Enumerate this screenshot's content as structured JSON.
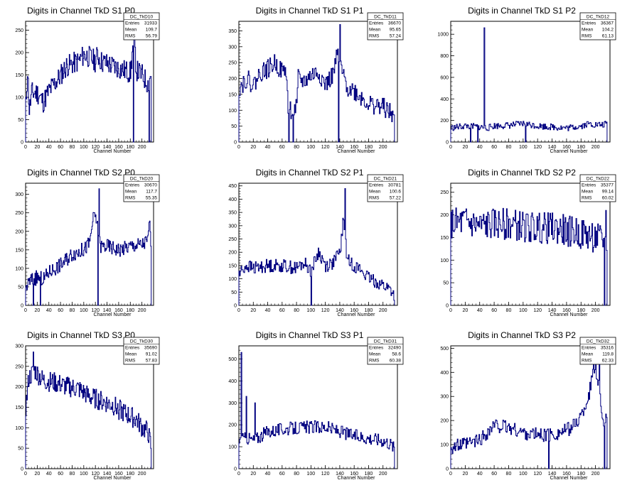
{
  "page": {
    "background": "#ffffff",
    "line_color": "#000080"
  },
  "chart_data": [
    {
      "type": "line",
      "title": "Digits in Channel TkD S1 P0",
      "xlabel": "Channel Number",
      "ylabel": "",
      "xlim": [
        0,
        220
      ],
      "ylim": [
        0,
        270
      ],
      "x_ticks": [
        0,
        20,
        40,
        60,
        80,
        100,
        120,
        140,
        160,
        180,
        200
      ],
      "y_ticks": [
        0,
        50,
        100,
        150,
        200,
        250
      ],
      "stats": {
        "name": "DC_TkD10",
        "rows": [
          [
            "Entries",
            "31933"
          ],
          [
            "Mean",
            "109.7"
          ],
          [
            "RMS",
            "56.79"
          ]
        ]
      },
      "spikes": [
        [
          185,
          0
        ],
        [
          212,
          0
        ]
      ],
      "anchors": [
        [
          0,
          80
        ],
        [
          3,
          160
        ],
        [
          6,
          70
        ],
        [
          10,
          110
        ],
        [
          20,
          110
        ],
        [
          30,
          90
        ],
        [
          40,
          115
        ],
        [
          55,
          140
        ],
        [
          70,
          170
        ],
        [
          80,
          175
        ],
        [
          90,
          180
        ],
        [
          100,
          195
        ],
        [
          110,
          190
        ],
        [
          120,
          180
        ],
        [
          123,
          195
        ],
        [
          130,
          180
        ],
        [
          140,
          175
        ],
        [
          150,
          170
        ],
        [
          160,
          165
        ],
        [
          170,
          160
        ],
        [
          180,
          155
        ],
        [
          186,
          240
        ],
        [
          190,
          160
        ],
        [
          200,
          150
        ],
        [
          210,
          130
        ],
        [
          215,
          150
        ]
      ],
      "noise": 25,
      "seed": 11
    },
    {
      "type": "line",
      "title": "Digits in Channel TkD S1 P1",
      "xlabel": "Channel Number",
      "ylabel": "",
      "xlim": [
        0,
        220
      ],
      "ylim": [
        0,
        380
      ],
      "x_ticks": [
        0,
        20,
        40,
        60,
        80,
        100,
        120,
        140,
        160,
        180,
        200
      ],
      "y_ticks": [
        0,
        50,
        100,
        150,
        200,
        250,
        300,
        350
      ],
      "stats": {
        "name": "DC_TkD11",
        "rows": [
          [
            "Entries",
            "36670"
          ],
          [
            "Mean",
            "95.65"
          ],
          [
            "RMS",
            "57.24"
          ]
        ]
      },
      "spikes": [
        [
          69,
          0
        ],
        [
          75,
          0
        ],
        [
          138,
          0
        ],
        [
          140,
          370
        ]
      ],
      "anchors": [
        [
          0,
          170
        ],
        [
          10,
          200
        ],
        [
          20,
          180
        ],
        [
          30,
          220
        ],
        [
          40,
          230
        ],
        [
          50,
          250
        ],
        [
          60,
          220
        ],
        [
          65,
          230
        ],
        [
          68,
          100
        ],
        [
          80,
          105
        ],
        [
          82,
          200
        ],
        [
          90,
          190
        ],
        [
          100,
          210
        ],
        [
          110,
          220
        ],
        [
          120,
          180
        ],
        [
          130,
          210
        ],
        [
          137,
          280
        ],
        [
          145,
          200
        ],
        [
          150,
          175
        ],
        [
          160,
          160
        ],
        [
          170,
          140
        ],
        [
          180,
          120
        ],
        [
          190,
          115
        ],
        [
          200,
          110
        ],
        [
          210,
          90
        ],
        [
          215,
          80
        ]
      ],
      "noise": 30,
      "seed": 22
    },
    {
      "type": "line",
      "title": "Digits in Channel TkD S1 P2",
      "xlabel": "Channel Number",
      "ylabel": "",
      "xlim": [
        0,
        220
      ],
      "ylim": [
        0,
        1120
      ],
      "x_ticks": [
        0,
        20,
        40,
        60,
        80,
        100,
        120,
        140,
        160,
        180,
        200
      ],
      "y_ticks": [
        0,
        200,
        400,
        600,
        800,
        1000
      ],
      "stats": {
        "name": "DC_TkD12",
        "rows": [
          [
            "Entries",
            "36367"
          ],
          [
            "Mean",
            "104.2"
          ],
          [
            "RMS",
            "61.13"
          ]
        ]
      },
      "spikes": [
        [
          27,
          0
        ],
        [
          37,
          0
        ],
        [
          46,
          1060
        ],
        [
          103,
          0
        ]
      ],
      "anchors": [
        [
          0,
          130
        ],
        [
          20,
          150
        ],
        [
          40,
          140
        ],
        [
          50,
          130
        ],
        [
          60,
          150
        ],
        [
          80,
          155
        ],
        [
          100,
          170
        ],
        [
          120,
          150
        ],
        [
          140,
          140
        ],
        [
          160,
          130
        ],
        [
          170,
          140
        ],
        [
          180,
          150
        ],
        [
          190,
          170
        ],
        [
          200,
          160
        ],
        [
          210,
          160
        ],
        [
          215,
          170
        ]
      ],
      "noise": 30,
      "seed": 33
    },
    {
      "type": "line",
      "title": "Digits in Channel TkD S2 P0",
      "xlabel": "Channel Number",
      "ylabel": "",
      "xlim": [
        0,
        220
      ],
      "ylim": [
        0,
        330
      ],
      "x_ticks": [
        0,
        20,
        40,
        60,
        80,
        100,
        120,
        140,
        160,
        180,
        200
      ],
      "y_ticks": [
        0,
        50,
        100,
        150,
        200,
        250,
        300
      ],
      "stats": {
        "name": "DC_TkD20",
        "rows": [
          [
            "Entries",
            "30670"
          ],
          [
            "Mean",
            "117.7"
          ],
          [
            "RMS",
            "55.35"
          ]
        ]
      },
      "spikes": [
        [
          13,
          0
        ],
        [
          25,
          0
        ],
        [
          124,
          0
        ],
        [
          126,
          315
        ]
      ],
      "anchors": [
        [
          0,
          50
        ],
        [
          10,
          70
        ],
        [
          20,
          75
        ],
        [
          30,
          70
        ],
        [
          40,
          90
        ],
        [
          60,
          110
        ],
        [
          80,
          140
        ],
        [
          100,
          150
        ],
        [
          110,
          170
        ],
        [
          115,
          230
        ],
        [
          120,
          240
        ],
        [
          128,
          160
        ],
        [
          140,
          160
        ],
        [
          160,
          150
        ],
        [
          180,
          160
        ],
        [
          200,
          165
        ],
        [
          210,
          175
        ],
        [
          213,
          240
        ],
        [
          216,
          95
        ]
      ],
      "noise": 20,
      "seed": 44
    },
    {
      "type": "line",
      "title": "Digits in Channel TkD S2 P1",
      "xlabel": "Channel Number",
      "ylabel": "",
      "xlim": [
        0,
        220
      ],
      "ylim": [
        0,
        460
      ],
      "x_ticks": [
        0,
        20,
        40,
        60,
        80,
        100,
        120,
        140,
        160,
        180,
        200
      ],
      "y_ticks": [
        0,
        50,
        100,
        150,
        200,
        250,
        300,
        350,
        400,
        450
      ],
      "stats": {
        "name": "DC_TkD21",
        "rows": [
          [
            "Entries",
            "30781"
          ],
          [
            "Mean",
            "100.6"
          ],
          [
            "RMS",
            "57.22"
          ]
        ]
      },
      "spikes": [
        [
          100,
          0
        ],
        [
          147,
          440
        ]
      ],
      "anchors": [
        [
          0,
          120
        ],
        [
          10,
          150
        ],
        [
          20,
          140
        ],
        [
          40,
          150
        ],
        [
          60,
          150
        ],
        [
          80,
          140
        ],
        [
          90,
          160
        ],
        [
          100,
          130
        ],
        [
          110,
          200
        ],
        [
          120,
          150
        ],
        [
          130,
          160
        ],
        [
          140,
          200
        ],
        [
          145,
          330
        ],
        [
          150,
          170
        ],
        [
          160,
          150
        ],
        [
          170,
          130
        ],
        [
          180,
          100
        ],
        [
          190,
          90
        ],
        [
          200,
          75
        ],
        [
          210,
          60
        ],
        [
          215,
          40
        ]
      ],
      "noise": 25,
      "seed": 55
    },
    {
      "type": "line",
      "title": "Digits in Channel TkD S2 P2",
      "xlabel": "Channel Number",
      "ylabel": "",
      "xlim": [
        0,
        220
      ],
      "ylim": [
        0,
        270
      ],
      "x_ticks": [
        0,
        20,
        40,
        60,
        80,
        100,
        120,
        140,
        160,
        180,
        200
      ],
      "y_ticks": [
        0,
        50,
        100,
        150,
        200,
        250
      ],
      "stats": {
        "name": "DC_TkD22",
        "rows": [
          [
            "Entries",
            "35377"
          ],
          [
            "Mean",
            "99.14"
          ],
          [
            "RMS",
            "60.02"
          ]
        ]
      },
      "spikes": [
        [
          212,
          0
        ],
        [
          214,
          210
        ]
      ],
      "anchors": [
        [
          0,
          180
        ],
        [
          20,
          185
        ],
        [
          40,
          175
        ],
        [
          60,
          180
        ],
        [
          80,
          180
        ],
        [
          100,
          175
        ],
        [
          120,
          170
        ],
        [
          140,
          170
        ],
        [
          160,
          165
        ],
        [
          180,
          160
        ],
        [
          200,
          150
        ],
        [
          210,
          140
        ]
      ],
      "noise": 35,
      "seed": 66
    },
    {
      "type": "line",
      "title": "Digits in Channel TkD S3 P0",
      "xlabel": "Channel Number",
      "ylabel": "",
      "xlim": [
        0,
        220
      ],
      "ylim": [
        0,
        300
      ],
      "x_ticks": [
        0,
        20,
        40,
        60,
        80,
        100,
        120,
        140,
        160,
        180,
        200
      ],
      "y_ticks": [
        0,
        50,
        100,
        150,
        200,
        250,
        300
      ],
      "stats": {
        "name": "DC_TkD30",
        "rows": [
          [
            "Entries",
            "35690"
          ],
          [
            "Mean",
            "91.02"
          ],
          [
            "RMS",
            "57.83"
          ]
        ]
      },
      "spikes": [
        [
          13,
          285
        ]
      ],
      "anchors": [
        [
          0,
          150
        ],
        [
          5,
          220
        ],
        [
          15,
          240
        ],
        [
          30,
          215
        ],
        [
          50,
          210
        ],
        [
          70,
          200
        ],
        [
          90,
          195
        ],
        [
          110,
          175
        ],
        [
          130,
          165
        ],
        [
          150,
          155
        ],
        [
          170,
          135
        ],
        [
          190,
          120
        ],
        [
          200,
          100
        ],
        [
          210,
          90
        ],
        [
          215,
          55
        ]
      ],
      "noise": 25,
      "seed": 77
    },
    {
      "type": "line",
      "title": "Digits in Channel TkD S3 P1",
      "xlabel": "Channel Number",
      "ylabel": "",
      "xlim": [
        0,
        220
      ],
      "ylim": [
        0,
        560
      ],
      "x_ticks": [
        0,
        20,
        40,
        60,
        80,
        100,
        120,
        140,
        160,
        180,
        200
      ],
      "y_ticks": [
        0,
        100,
        200,
        300,
        400,
        500
      ],
      "stats": {
        "name": "DC_TkD31",
        "rows": [
          [
            "Entries",
            "32490"
          ],
          [
            "Mean",
            "58.6"
          ],
          [
            "RMS",
            "60.38"
          ]
        ]
      },
      "spikes": [
        [
          3,
          530
        ],
        [
          4,
          150
        ],
        [
          10,
          330
        ],
        [
          22,
          300
        ]
      ],
      "anchors": [
        [
          0,
          130
        ],
        [
          12,
          140
        ],
        [
          20,
          130
        ],
        [
          30,
          150
        ],
        [
          40,
          170
        ],
        [
          60,
          180
        ],
        [
          80,
          185
        ],
        [
          100,
          190
        ],
        [
          120,
          190
        ],
        [
          140,
          170
        ],
        [
          160,
          150
        ],
        [
          180,
          140
        ],
        [
          200,
          130
        ],
        [
          210,
          115
        ],
        [
          215,
          95
        ]
      ],
      "noise": 30,
      "seed": 88
    },
    {
      "type": "line",
      "title": "Digits in Channel TkD S3 P2",
      "xlabel": "Channel Number",
      "ylabel": "",
      "xlim": [
        0,
        220
      ],
      "ylim": [
        0,
        510
      ],
      "x_ticks": [
        0,
        20,
        40,
        60,
        80,
        100,
        120,
        140,
        160,
        180,
        200
      ],
      "y_ticks": [
        0,
        100,
        200,
        300,
        400,
        500
      ],
      "stats": {
        "name": "DC_TkD32",
        "rows": [
          [
            "Entries",
            "35316"
          ],
          [
            "Mean",
            "119.8"
          ],
          [
            "RMS",
            "62.33"
          ]
        ]
      },
      "spikes": [
        [
          135,
          0
        ],
        [
          197,
          500
        ],
        [
          200,
          500
        ],
        [
          205,
          480
        ],
        [
          212,
          0
        ]
      ],
      "anchors": [
        [
          0,
          90
        ],
        [
          20,
          100
        ],
        [
          40,
          120
        ],
        [
          50,
          150
        ],
        [
          60,
          180
        ],
        [
          80,
          170
        ],
        [
          100,
          150
        ],
        [
          120,
          140
        ],
        [
          140,
          140
        ],
        [
          160,
          160
        ],
        [
          170,
          180
        ],
        [
          180,
          220
        ],
        [
          190,
          300
        ],
        [
          195,
          380
        ],
        [
          200,
          420
        ],
        [
          205,
          330
        ],
        [
          210,
          200
        ]
      ],
      "noise": 30,
      "seed": 99
    }
  ]
}
